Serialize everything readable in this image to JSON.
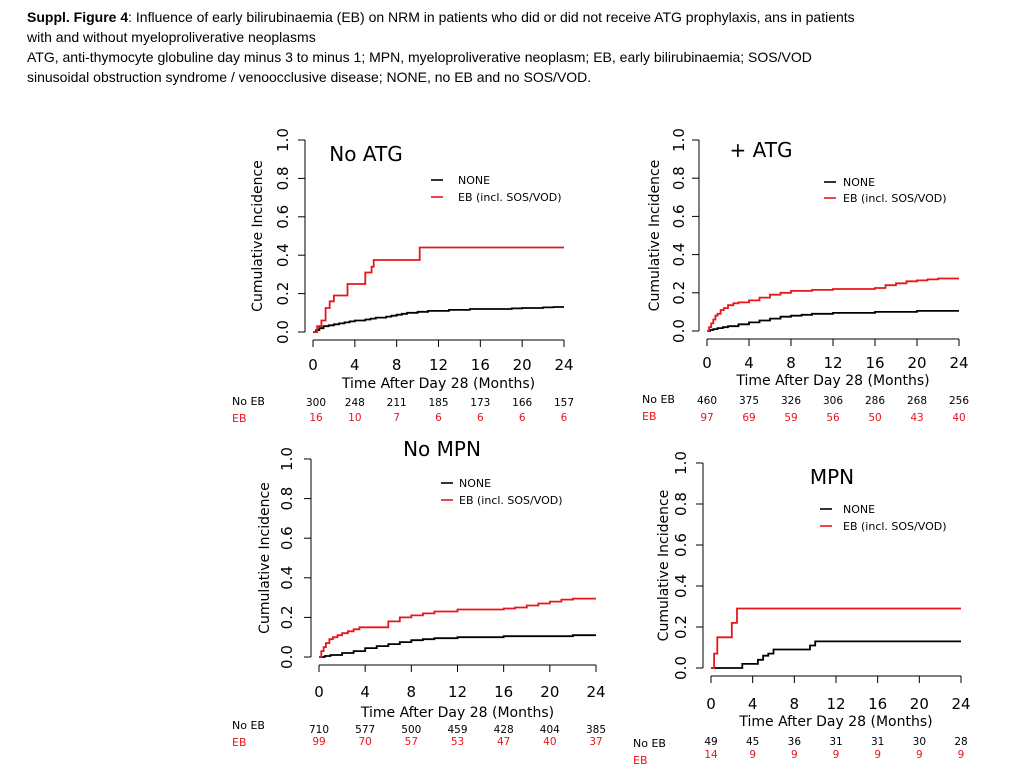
{
  "caption": {
    "label": "Suppl. Figure 4",
    "line1_rest": ": Influence of early bilirubinaemia (EB) on NRM in patients who did or did not receive ATG prophylaxis, ans in patients",
    "line2": "with and without myeloproliverative neoplasms",
    "line3": "ATG, anti-thymocyte globuline day minus 3 to minus 1; MPN, myeloproliverative neoplasm; EB, early bilirubinaemia; SOS/VOD",
    "line4": "sinusoidal obstruction syndrome / venoocclusive disease; NONE, no EB and no SOS/VOD."
  },
  "colors": {
    "none": "#000000",
    "eb": "#e8161b"
  },
  "chart_data": [
    {
      "type": "line",
      "title": "No ATG",
      "xlabel": "Time After Day 28 (Months)",
      "ylabel": "Cumulative Incidence",
      "xlim": [
        0,
        24
      ],
      "ylim": [
        0,
        1
      ],
      "xticks": [
        "0",
        "4",
        "8",
        "12",
        "16",
        "20",
        "24"
      ],
      "yticks": [
        "0.0",
        "0.2",
        "0.4",
        "0.6",
        "0.8",
        "1.0"
      ],
      "legend": [
        "NONE",
        "EB (incl. SOS/VOD)"
      ],
      "series": [
        {
          "name": "NONE",
          "x": [
            0,
            0.3,
            0.6,
            1,
            1.5,
            2,
            2.5,
            3,
            3.5,
            4,
            4.5,
            5,
            5.5,
            6,
            7,
            7.5,
            8,
            8.5,
            9,
            9.5,
            10,
            11,
            12,
            13,
            14,
            15,
            16,
            17,
            18,
            19,
            20,
            21,
            22,
            23,
            24
          ],
          "y": [
            0,
            0.01,
            0.02,
            0.03,
            0.035,
            0.04,
            0.045,
            0.05,
            0.055,
            0.06,
            0.06,
            0.065,
            0.07,
            0.075,
            0.08,
            0.085,
            0.09,
            0.095,
            0.1,
            0.1,
            0.105,
            0.11,
            0.11,
            0.115,
            0.115,
            0.12,
            0.12,
            0.12,
            0.12,
            0.123,
            0.125,
            0.125,
            0.128,
            0.13,
            0.13
          ]
        },
        {
          "name": "EB (incl. SOS/VOD)",
          "x": [
            0,
            0.4,
            0.8,
            1.2,
            1.6,
            2.0,
            3.3,
            5.0,
            5.6,
            5.8,
            10.2,
            24
          ],
          "y": [
            0,
            0.03,
            0.06,
            0.125,
            0.16,
            0.19,
            0.25,
            0.31,
            0.34,
            0.375,
            0.44,
            0.44
          ]
        }
      ],
      "risk_labels": [
        "No EB",
        "EB"
      ],
      "risk_none": [
        "300",
        "248",
        "211",
        "185",
        "173",
        "166",
        "157"
      ],
      "risk_eb": [
        "16",
        "10",
        "7",
        "6",
        "6",
        "6",
        "6"
      ]
    },
    {
      "type": "line",
      "title": "+ ATG",
      "xlabel": "Time After Day 28 (Months)",
      "ylabel": "Cumulative Incidence",
      "xlim": [
        0,
        24
      ],
      "ylim": [
        0,
        1
      ],
      "xticks": [
        "0",
        "4",
        "8",
        "12",
        "16",
        "20",
        "24"
      ],
      "yticks": [
        "0.0",
        "0.2",
        "0.4",
        "0.6",
        "0.8",
        "1.0"
      ],
      "legend": [
        "NONE",
        "EB (incl. SOS/VOD)"
      ],
      "series": [
        {
          "name": "NONE",
          "x": [
            0,
            0.3,
            0.6,
            1,
            1.5,
            2,
            3,
            4,
            5,
            6,
            7,
            8,
            9,
            10,
            11,
            12,
            14,
            16,
            18,
            20,
            22,
            24
          ],
          "y": [
            0,
            0.005,
            0.01,
            0.015,
            0.02,
            0.025,
            0.035,
            0.045,
            0.055,
            0.065,
            0.075,
            0.08,
            0.085,
            0.09,
            0.09,
            0.095,
            0.095,
            0.1,
            0.1,
            0.105,
            0.105,
            0.105
          ]
        },
        {
          "name": "EB (incl. SOS/VOD)",
          "x": [
            0,
            0.2,
            0.4,
            0.6,
            0.8,
            1.0,
            1.3,
            1.6,
            2.0,
            2.5,
            3.0,
            4.0,
            5.0,
            6.0,
            7.0,
            8.0,
            10,
            12,
            14,
            16,
            17,
            18,
            19,
            20,
            21,
            22,
            24
          ],
          "y": [
            0,
            0.02,
            0.04,
            0.06,
            0.08,
            0.09,
            0.11,
            0.12,
            0.135,
            0.145,
            0.15,
            0.16,
            0.175,
            0.19,
            0.2,
            0.21,
            0.215,
            0.22,
            0.22,
            0.225,
            0.24,
            0.25,
            0.26,
            0.265,
            0.27,
            0.275,
            0.275
          ]
        }
      ],
      "risk_labels": [
        "No EB",
        "EB"
      ],
      "risk_none": [
        "460",
        "375",
        "326",
        "306",
        "286",
        "268",
        "256"
      ],
      "risk_eb": [
        "97",
        "69",
        "59",
        "56",
        "50",
        "43",
        "40"
      ]
    },
    {
      "type": "line",
      "title": "No MPN",
      "xlabel": "Time After Day 28 (Months)",
      "ylabel": "Cumulative Incidence",
      "xlim": [
        0,
        24
      ],
      "ylim": [
        0,
        1
      ],
      "xticks": [
        "0",
        "4",
        "8",
        "12",
        "16",
        "20",
        "24"
      ],
      "yticks": [
        "0.0",
        "0.2",
        "0.4",
        "0.6",
        "0.8",
        "1.0"
      ],
      "legend": [
        "NONE",
        "EB (incl. SOS/VOD)"
      ],
      "series": [
        {
          "name": "NONE",
          "x": [
            0,
            0.5,
            1,
            2,
            3,
            4,
            5,
            6,
            7,
            8,
            9,
            10,
            11,
            12,
            14,
            16,
            18,
            20,
            22,
            24
          ],
          "y": [
            0,
            0.005,
            0.01,
            0.02,
            0.03,
            0.045,
            0.055,
            0.065,
            0.075,
            0.085,
            0.09,
            0.095,
            0.095,
            0.1,
            0.1,
            0.105,
            0.105,
            0.105,
            0.11,
            0.11
          ]
        },
        {
          "name": "EB (incl. SOS/VOD)",
          "x": [
            0,
            0.2,
            0.4,
            0.6,
            0.9,
            1.2,
            1.6,
            2.0,
            2.5,
            3.0,
            3.5,
            5.0,
            6.0,
            7.0,
            8.0,
            9.0,
            10,
            12,
            14,
            16,
            17,
            18,
            19,
            20,
            21,
            22,
            24
          ],
          "y": [
            0,
            0.03,
            0.05,
            0.07,
            0.09,
            0.1,
            0.11,
            0.12,
            0.13,
            0.14,
            0.15,
            0.15,
            0.18,
            0.2,
            0.21,
            0.22,
            0.23,
            0.24,
            0.24,
            0.245,
            0.25,
            0.26,
            0.27,
            0.28,
            0.29,
            0.295,
            0.295
          ]
        }
      ],
      "risk_labels": [
        "No EB",
        "EB"
      ],
      "risk_none": [
        "710",
        "577",
        "500",
        "459",
        "428",
        "404",
        "385"
      ],
      "risk_eb": [
        "99",
        "70",
        "57",
        "53",
        "47",
        "40",
        "37"
      ]
    },
    {
      "type": "line",
      "title": "MPN",
      "xlabel": "Time After Day 28 (Months)",
      "ylabel": "Cumulative Incidence",
      "xlim": [
        0,
        24
      ],
      "ylim": [
        0,
        1
      ],
      "xticks": [
        "0",
        "4",
        "8",
        "12",
        "16",
        "20",
        "24"
      ],
      "yticks": [
        "0.0",
        "0.2",
        "0.4",
        "0.6",
        "0.8",
        "1.0"
      ],
      "legend": [
        "NONE",
        "EB (incl. SOS/VOD)"
      ],
      "series": [
        {
          "name": "NONE",
          "x": [
            0,
            3.0,
            4.5,
            5.0,
            5.5,
            6.0,
            9.5,
            10,
            24
          ],
          "y": [
            0,
            0.02,
            0.04,
            0.06,
            0.07,
            0.09,
            0.11,
            0.13,
            0.13
          ]
        },
        {
          "name": "EB (incl. SOS/VOD)",
          "x": [
            0,
            0.3,
            0.6,
            2.0,
            2.5,
            24
          ],
          "y": [
            0,
            0.07,
            0.15,
            0.22,
            0.29,
            0.29
          ]
        }
      ],
      "risk_labels": [
        "No EB",
        "EB"
      ],
      "risk_none": [
        "49",
        "45",
        "36",
        "31",
        "31",
        "30",
        "28"
      ],
      "risk_eb": [
        "14",
        "9",
        "9",
        "9",
        "9",
        "9",
        "9"
      ]
    }
  ]
}
